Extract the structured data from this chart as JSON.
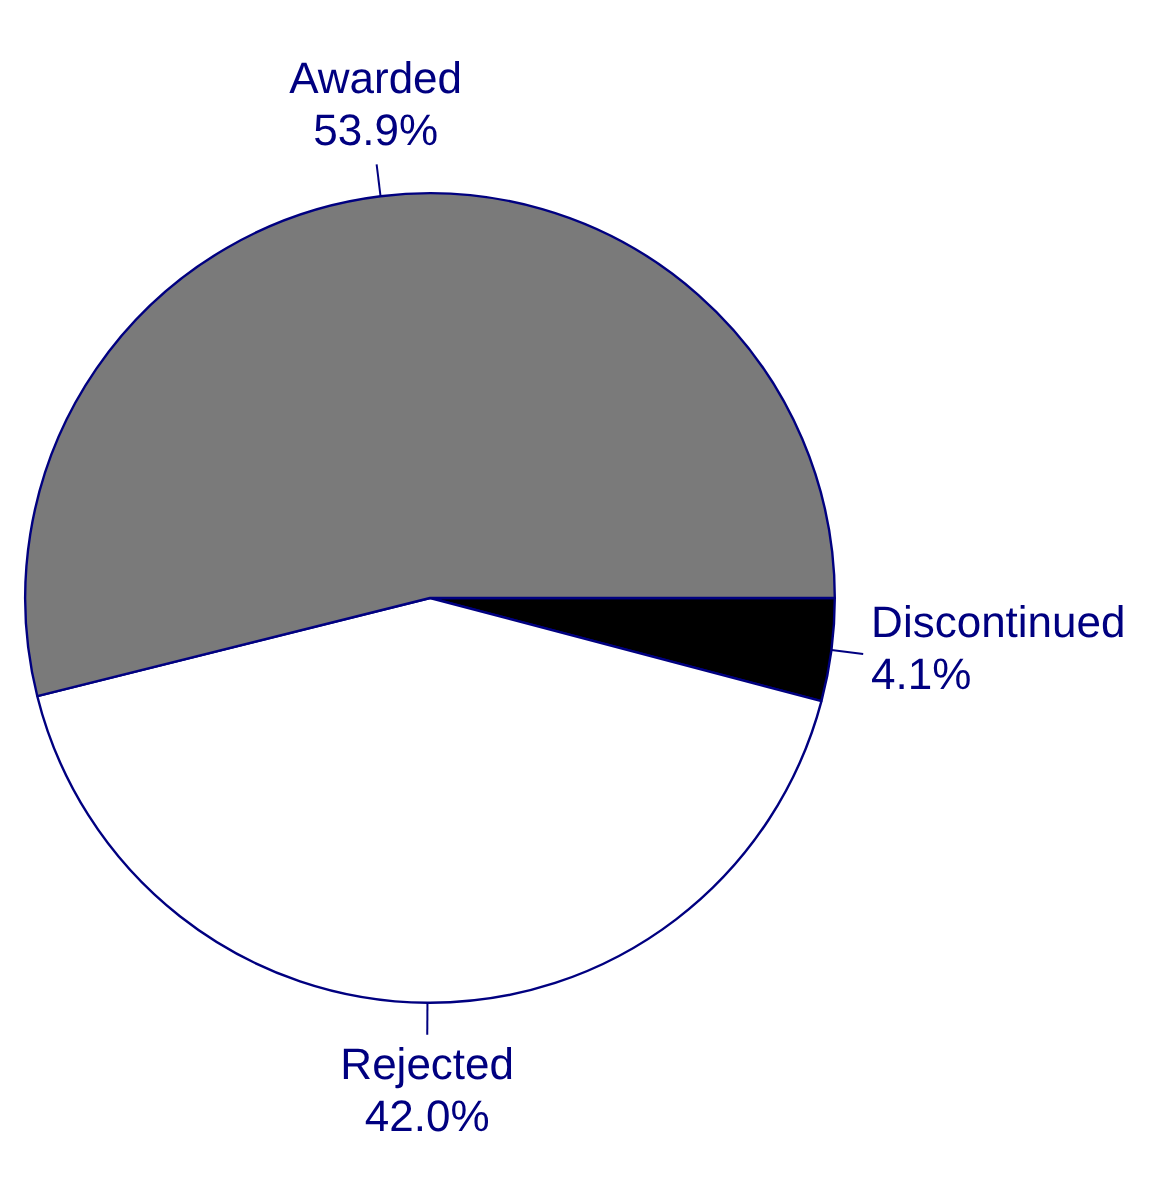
{
  "chart_data": {
    "type": "pie",
    "categories": [
      "Discontinued",
      "Rejected",
      "Awarded"
    ],
    "values": [
      4.1,
      42.0,
      53.9
    ],
    "value_labels": [
      "4.1%",
      "42.0%",
      "53.9%"
    ],
    "colors": [
      "#000000",
      "#ffffff",
      "#7a7a7a"
    ],
    "legend": false
  }
}
